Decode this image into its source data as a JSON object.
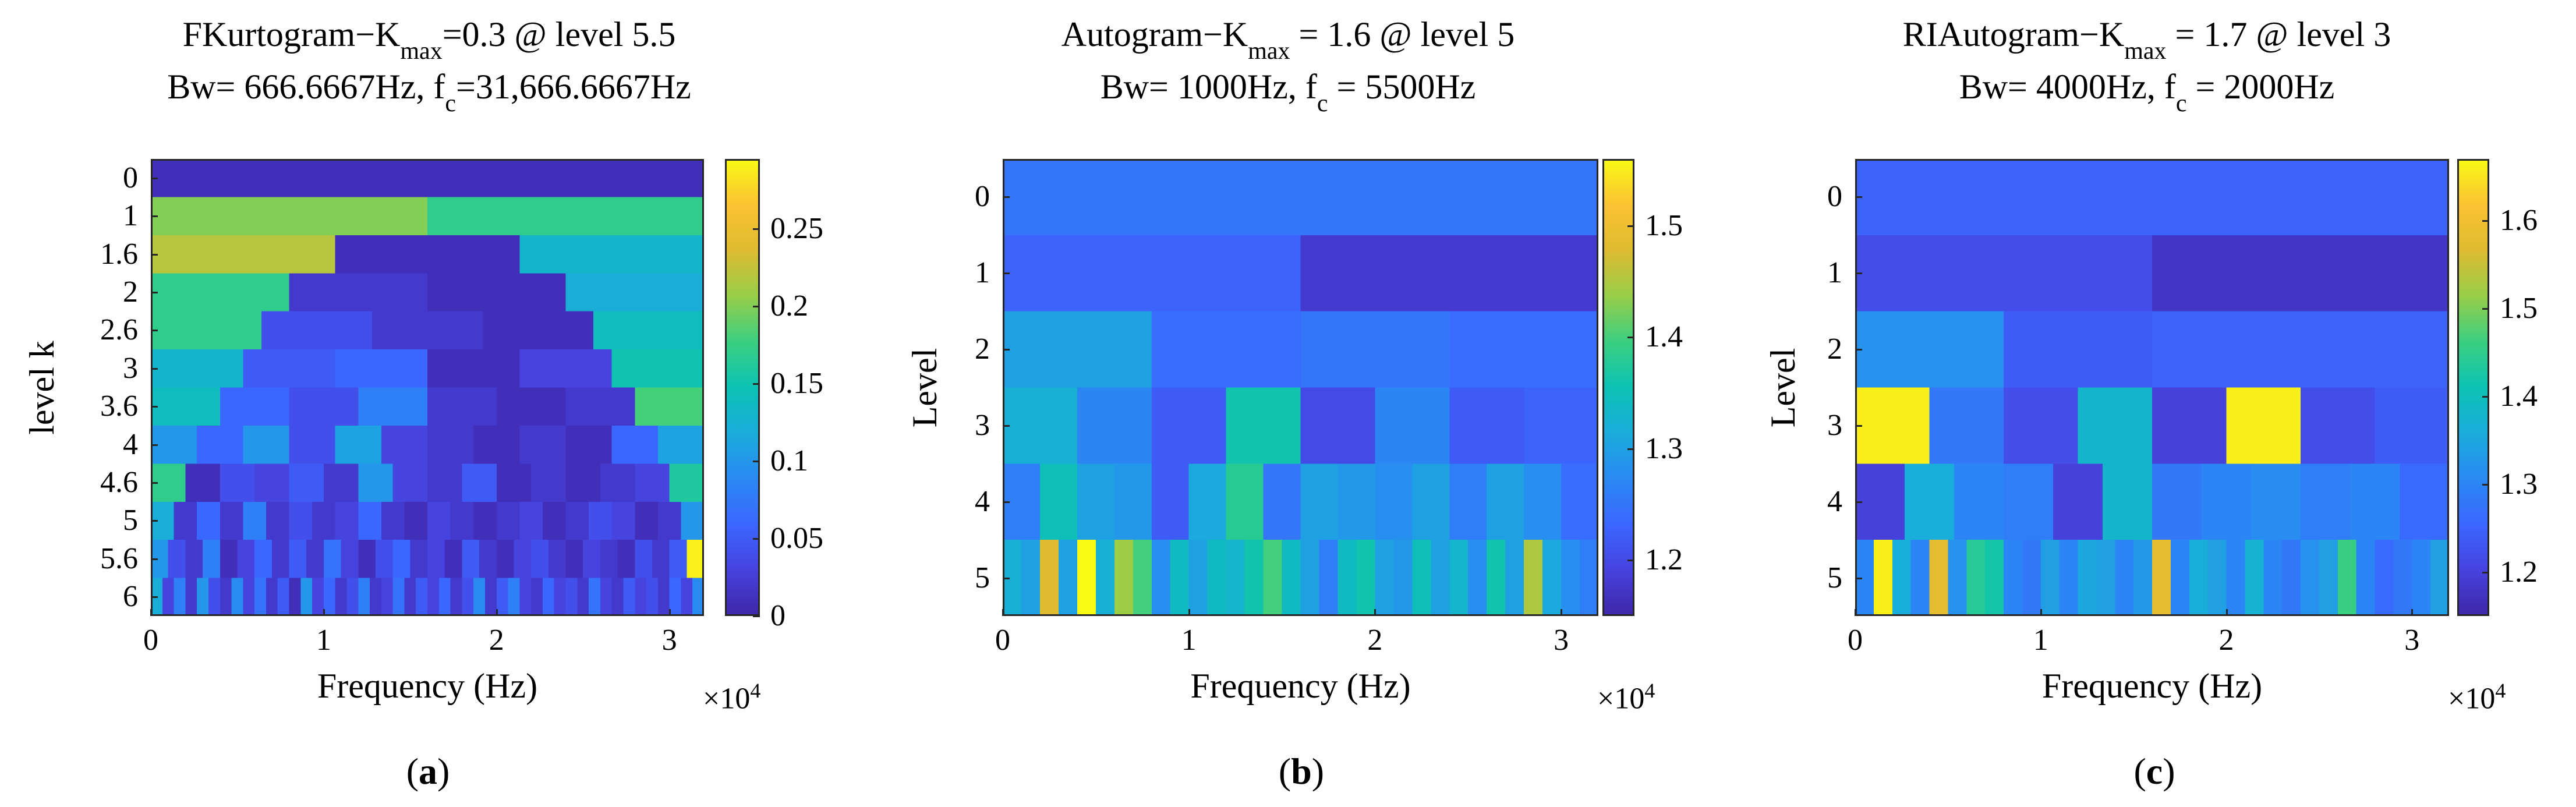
{
  "chart_data": [
    {
      "type": "heatmap",
      "id": "a",
      "caption_letter": "a",
      "title_prefix": "FKurtogram−K",
      "title_sub": "max",
      "title_suffix": "=0.3 @ level 5.5",
      "subtitle_prefix": "Bw= 666.6667Hz, f",
      "subtitle_sub": "c",
      "subtitle_suffix": "=31,666.6667Hz",
      "xlabel": "Frequency (Hz)",
      "ylabel": "level k",
      "x_multiplier": "×10",
      "x_multiplier_exp": "4",
      "xlim": [
        0,
        32000
      ],
      "x_ticks": [
        0,
        10000,
        20000,
        30000
      ],
      "x_tick_labels": [
        "0",
        "1",
        "2",
        "3"
      ],
      "y_tick_labels": [
        "0",
        "1",
        "1.6",
        "2",
        "2.6",
        "3",
        "3.6",
        "4",
        "4.6",
        "5",
        "5.6",
        "6"
      ],
      "colorbar": {
        "min": 0,
        "max": 0.295,
        "ticks": [
          0,
          0.05,
          0.1,
          0.15,
          0.2,
          0.25
        ],
        "tick_labels": [
          "0",
          "0.05",
          "0.1",
          "0.15",
          "0.2",
          "0.25"
        ]
      },
      "rows": [
        [
          0.01
        ],
        [
          0.2,
          0.17
        ],
        [
          0.22,
          0.01,
          0.13
        ],
        [
          0.17,
          0.02,
          0.01,
          0.12
        ],
        [
          0.17,
          0.04,
          0.02,
          0.01,
          0.14
        ],
        [
          0.13,
          0.05,
          0.06,
          0.01,
          0.03,
          0.15
        ],
        [
          0.14,
          0.06,
          0.04,
          0.08,
          0.02,
          0.01,
          0.02,
          0.18
        ],
        [
          0.1,
          0.06,
          0.1,
          0.04,
          0.11,
          0.03,
          0.02,
          0.01,
          0.02,
          0.01,
          0.06,
          0.11
        ],
        [
          0.17,
          0.01,
          0.04,
          0.03,
          0.05,
          0.02,
          0.1,
          0.03,
          0.02,
          0.05,
          0.01,
          0.02,
          0.01,
          0.02,
          0.03,
          0.16
        ],
        [
          0.12,
          0.02,
          0.06,
          0.02,
          0.08,
          0.02,
          0.04,
          0.02,
          0.03,
          0.06,
          0.02,
          0.01,
          0.03,
          0.02,
          0.01,
          0.02,
          0.03,
          0.01,
          0.02,
          0.04,
          0.03,
          0.01,
          0.02,
          0.1
        ],
        [
          0.1,
          0.04,
          0.02,
          0.08,
          0.01,
          0.03,
          0.06,
          0.02,
          0.05,
          0.02,
          0.07,
          0.03,
          0.01,
          0.04,
          0.06,
          0.02,
          0.03,
          0.01,
          0.05,
          0.02,
          0.01,
          0.03,
          0.04,
          0.02,
          0.01,
          0.03,
          0.02,
          0.01,
          0.04,
          0.02,
          0.05,
          0.29
        ],
        [
          0.12,
          0.03,
          0.08,
          0.02,
          0.1,
          0.04,
          0.02,
          0.09,
          0.03,
          0.07,
          0.02,
          0.05,
          0.01,
          0.1,
          0.03,
          0.06,
          0.02,
          0.04,
          0.08,
          0.02,
          0.03,
          0.07,
          0.02,
          0.05,
          0.03,
          0.06,
          0.02,
          0.04,
          0.09,
          0.02,
          0.05,
          0.08,
          0.03,
          0.02,
          0.06,
          0.03,
          0.04,
          0.02,
          0.07,
          0.03,
          0.02,
          0.05,
          0.03,
          0.04,
          0.02,
          0.06,
          0.03,
          0.09
        ]
      ]
    },
    {
      "type": "heatmap",
      "id": "b",
      "caption_letter": "b",
      "title_prefix": "Autogram−K",
      "title_sub": "max",
      "title_suffix": " = 1.6 @ level 5",
      "subtitle_prefix": "Bw= 1000Hz, f",
      "subtitle_sub": "c",
      "subtitle_suffix": " = 5500Hz",
      "xlabel": "Frequency (Hz)",
      "ylabel": "Level",
      "x_multiplier": "×10",
      "x_multiplier_exp": "4",
      "xlim": [
        0,
        32000
      ],
      "x_ticks": [
        0,
        10000,
        20000,
        30000
      ],
      "x_tick_labels": [
        "0",
        "1",
        "2",
        "3"
      ],
      "y_tick_labels": [
        "0",
        "1",
        "2",
        "3",
        "4",
        "5"
      ],
      "colorbar": {
        "min": 1.15,
        "max": 1.56,
        "ticks": [
          1.2,
          1.3,
          1.4,
          1.5
        ],
        "tick_labels": [
          "1.2",
          "1.3",
          "1.4",
          "1.5"
        ]
      },
      "rows": [
        [
          1.25
        ],
        [
          1.23,
          1.18
        ],
        [
          1.3,
          1.24,
          1.25,
          1.24
        ],
        [
          1.32,
          1.27,
          1.22,
          1.36,
          1.2,
          1.27,
          1.22,
          1.23
        ],
        [
          1.26,
          1.35,
          1.3,
          1.29,
          1.22,
          1.31,
          1.38,
          1.25,
          1.3,
          1.29,
          1.28,
          1.3,
          1.26,
          1.3,
          1.28,
          1.24
        ],
        [
          1.32,
          1.3,
          1.48,
          1.3,
          1.56,
          1.32,
          1.44,
          1.4,
          1.28,
          1.34,
          1.3,
          1.34,
          1.33,
          1.36,
          1.4,
          1.34,
          1.3,
          1.26,
          1.34,
          1.36,
          1.3,
          1.29,
          1.35,
          1.3,
          1.33,
          1.28,
          1.36,
          1.3,
          1.45,
          1.31,
          1.28,
          1.26
        ]
      ]
    },
    {
      "type": "heatmap",
      "id": "c",
      "caption_letter": "c",
      "title_prefix": "RIAutogram−K",
      "title_sub": "max",
      "title_suffix": " = 1.7 @ level 3",
      "subtitle_prefix": "Bw= 4000Hz, f",
      "subtitle_sub": "c",
      "subtitle_suffix": " = 2000Hz",
      "xlabel": "Frequency (Hz)",
      "ylabel": "Level",
      "x_multiplier": "×10",
      "x_multiplier_exp": "4",
      "xlim": [
        0,
        32000
      ],
      "x_ticks": [
        0,
        10000,
        20000,
        30000
      ],
      "x_tick_labels": [
        "0",
        "1",
        "2",
        "3"
      ],
      "y_tick_labels": [
        "0",
        "1",
        "2",
        "3",
        "4",
        "5"
      ],
      "colorbar": {
        "min": 1.15,
        "max": 1.67,
        "ticks": [
          1.2,
          1.3,
          1.4,
          1.5,
          1.6
        ],
        "tick_labels": [
          "1.2",
          "1.3",
          "1.4",
          "1.5",
          "1.6"
        ]
      },
      "rows": [
        [
          1.25
        ],
        [
          1.22,
          1.18
        ],
        [
          1.32,
          1.24,
          1.25,
          1.25
        ],
        [
          1.66,
          1.28,
          1.22,
          1.38,
          1.2,
          1.66,
          1.22,
          1.24
        ],
        [
          1.2,
          1.36,
          1.3,
          1.29,
          1.2,
          1.38,
          1.28,
          1.3,
          1.31,
          1.29,
          1.3,
          1.26
        ],
        [
          1.3,
          1.66,
          1.36,
          1.3,
          1.58,
          1.32,
          1.44,
          1.42,
          1.3,
          1.28,
          1.34,
          1.3,
          1.35,
          1.34,
          1.3,
          1.33,
          1.58,
          1.3,
          1.36,
          1.34,
          1.3,
          1.37,
          1.3,
          1.28,
          1.32,
          1.34,
          1.46,
          1.3,
          1.26,
          1.28,
          1.3,
          1.34
        ]
      ]
    }
  ]
}
